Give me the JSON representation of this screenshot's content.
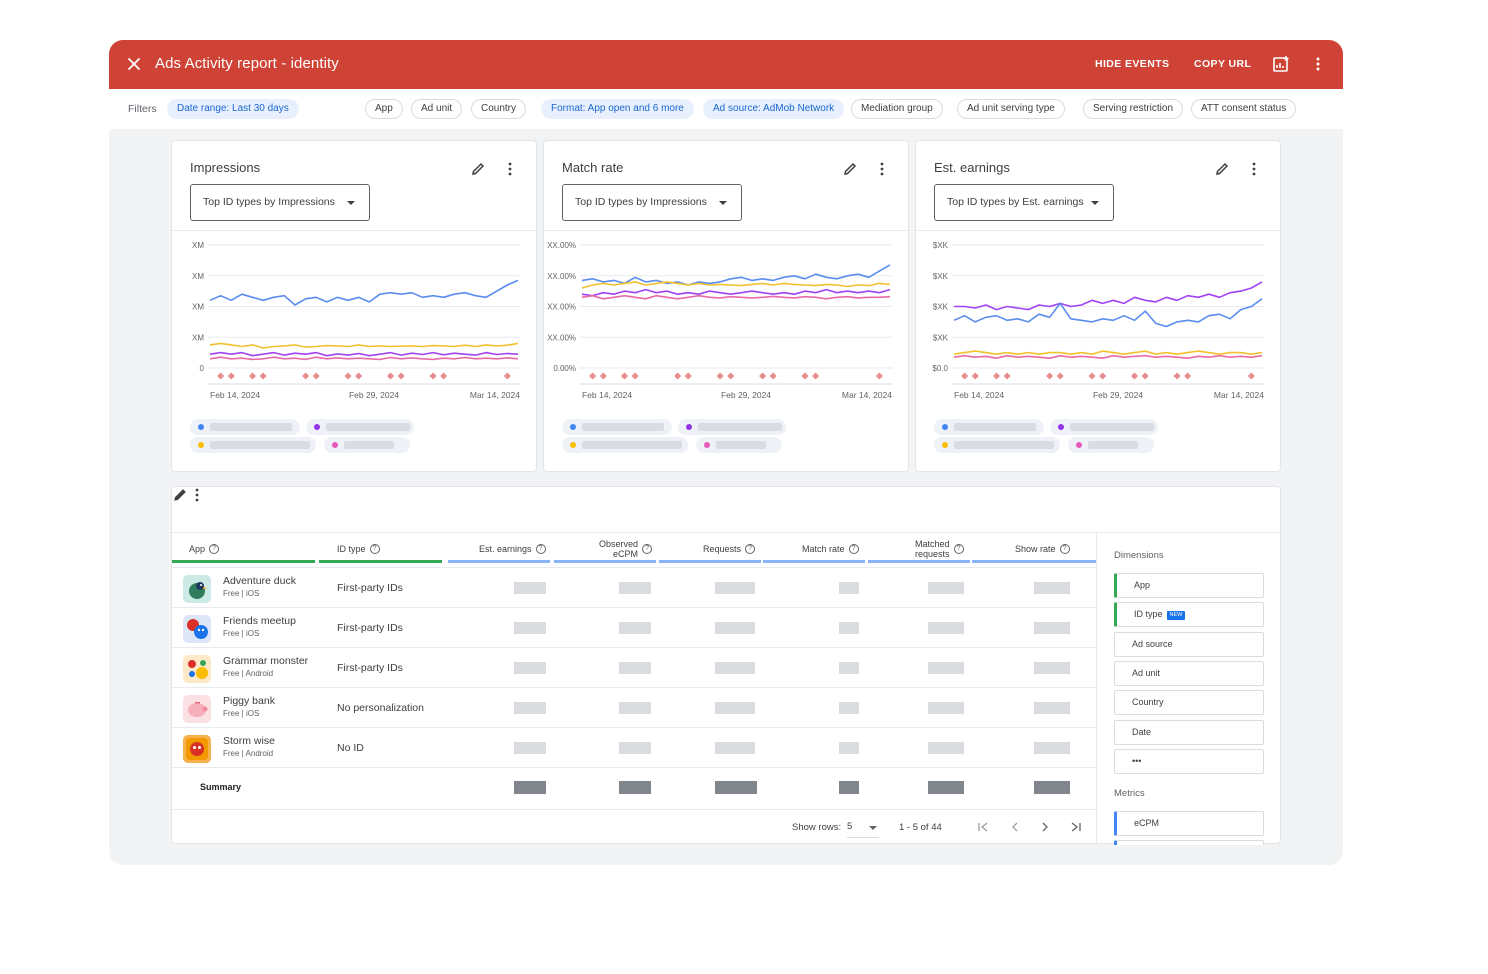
{
  "header": {
    "title": "Ads Activity report - identity",
    "hide_events": "HIDE EVENTS",
    "copy_url": "COPY URL"
  },
  "filters": {
    "label": "Filters",
    "chips": [
      {
        "label": "Date range: Last 30 days",
        "active": true
      },
      {
        "label": "App",
        "active": false
      },
      {
        "label": "Ad unit",
        "active": false
      },
      {
        "label": "Country",
        "active": false
      },
      {
        "label": "Format: App open and 6 more",
        "active": true
      },
      {
        "label": "Ad source: AdMob Network",
        "active": true
      },
      {
        "label": "Mediation group",
        "active": false
      },
      {
        "label": "Ad unit serving type",
        "active": false
      },
      {
        "label": "Serving restriction",
        "active": false
      },
      {
        "label": "ATT consent status",
        "active": false
      }
    ]
  },
  "cards": [
    {
      "title": "Impressions",
      "dropdown": "Top ID types by Impressions"
    },
    {
      "title": "Match rate",
      "dropdown": "Top ID types by Impressions"
    },
    {
      "title": "Est. earnings",
      "dropdown": "Top ID types by Est. earnings"
    }
  ],
  "chart_data": [
    {
      "type": "line",
      "title": "Impressions",
      "y_tick_labels": [
        "XM",
        "XM",
        "XM",
        "XM",
        "0"
      ],
      "x_tick_labels": [
        "Feb 14, 2024",
        "Feb 29, 2024",
        "Mar 14, 2024"
      ],
      "grid": true,
      "series": [
        {
          "color": "#5b8def",
          "values": [
            2.2,
            2.35,
            2.2,
            2.4,
            2.3,
            2.2,
            2.3,
            2.35,
            2.05,
            2.25,
            2.3,
            2.15,
            2.3,
            2.2,
            2.3,
            2.15,
            2.4,
            2.45,
            2.4,
            2.45,
            2.3,
            2.35,
            2.3,
            2.4,
            2.45,
            2.35,
            2.3,
            2.5,
            2.7,
            2.85
          ]
        },
        {
          "color": "#f2c12e",
          "values": [
            0.75,
            0.8,
            0.75,
            0.7,
            0.75,
            0.65,
            0.7,
            0.72,
            0.75,
            0.68,
            0.7,
            0.73,
            0.72,
            0.7,
            0.75,
            0.7,
            0.72,
            0.7,
            0.71,
            0.72,
            0.7,
            0.73,
            0.72,
            0.7,
            0.74,
            0.7,
            0.75,
            0.72,
            0.74,
            0.8
          ]
        },
        {
          "color": "#a142f4",
          "values": [
            0.45,
            0.5,
            0.45,
            0.5,
            0.4,
            0.45,
            0.5,
            0.42,
            0.48,
            0.45,
            0.5,
            0.4,
            0.46,
            0.42,
            0.47,
            0.4,
            0.45,
            0.5,
            0.42,
            0.48,
            0.44,
            0.5,
            0.43,
            0.48,
            0.45,
            0.42,
            0.5,
            0.44,
            0.47,
            0.45
          ]
        },
        {
          "color": "#e86ba6",
          "values": [
            0.3,
            0.35,
            0.3,
            0.32,
            0.28,
            0.3,
            0.35,
            0.3,
            0.32,
            0.28,
            0.35,
            0.3,
            0.33,
            0.3,
            0.32,
            0.3,
            0.28,
            0.34,
            0.3,
            0.33,
            0.3,
            0.28,
            0.32,
            0.3,
            0.34,
            0.3,
            0.32,
            0.3,
            0.33,
            0.3
          ]
        }
      ],
      "events": [
        1,
        2,
        4,
        5,
        9,
        10,
        13,
        14,
        17,
        18,
        21,
        22,
        28
      ]
    },
    {
      "type": "line",
      "title": "Match rate",
      "y_tick_labels": [
        "XX.00%",
        "XX.00%",
        "XX.00%",
        "XX.00%",
        "0.00%"
      ],
      "x_tick_labels": [
        "Feb 14, 2024",
        "Feb 29, 2024",
        "Mar 14, 2024"
      ],
      "grid": true,
      "series": [
        {
          "color": "#5b8def",
          "values": [
            2.85,
            2.9,
            2.8,
            2.85,
            2.75,
            2.95,
            2.8,
            2.85,
            2.75,
            2.8,
            2.7,
            2.8,
            2.75,
            2.8,
            2.9,
            2.95,
            2.85,
            2.9,
            2.85,
            2.95,
            3.0,
            2.9,
            3.05,
            2.95,
            2.9,
            3.0,
            3.05,
            2.95,
            3.15,
            3.35
          ]
        },
        {
          "color": "#f2c12e",
          "values": [
            2.6,
            2.7,
            2.75,
            2.7,
            2.75,
            2.8,
            2.7,
            2.75,
            2.8,
            2.75,
            2.7,
            2.75,
            2.7,
            2.72,
            2.7,
            2.68,
            2.72,
            2.75,
            2.7,
            2.75,
            2.72,
            2.7,
            2.68,
            2.72,
            2.7,
            2.65,
            2.7,
            2.68,
            2.75,
            2.72
          ]
        },
        {
          "color": "#a142f4",
          "values": [
            2.4,
            2.35,
            2.45,
            2.4,
            2.5,
            2.45,
            2.55,
            2.45,
            2.5,
            2.4,
            2.45,
            2.4,
            2.5,
            2.45,
            2.4,
            2.45,
            2.5,
            2.45,
            2.4,
            2.45,
            2.4,
            2.5,
            2.45,
            2.55,
            2.45,
            2.5,
            2.45,
            2.5,
            2.45,
            2.55
          ]
        },
        {
          "color": "#e86ba6",
          "values": [
            2.3,
            2.35,
            2.25,
            2.3,
            2.35,
            2.3,
            2.25,
            2.35,
            2.3,
            2.25,
            2.3,
            2.35,
            2.3,
            2.28,
            2.32,
            2.3,
            2.28,
            2.3,
            2.33,
            2.3,
            2.28,
            2.32,
            2.3,
            2.25,
            2.3,
            2.32,
            2.28,
            2.3,
            2.3,
            2.32
          ]
        }
      ],
      "events": [
        1,
        2,
        4,
        5,
        9,
        10,
        13,
        14,
        17,
        18,
        21,
        22,
        28
      ]
    },
    {
      "type": "line",
      "title": "Est. earnings",
      "y_tick_labels": [
        "$XK",
        "$XK",
        "$XK",
        "$XK",
        "$0.0"
      ],
      "x_tick_labels": [
        "Feb 14, 2024",
        "Feb 29, 2024",
        "Mar 14, 2024"
      ],
      "grid": true,
      "series": [
        {
          "color": "#a142f4",
          "values": [
            2.0,
            2.0,
            1.95,
            2.05,
            1.9,
            2.0,
            1.95,
            1.9,
            2.05,
            2.0,
            2.1,
            2.0,
            2.05,
            2.2,
            2.1,
            2.2,
            2.1,
            2.3,
            2.2,
            2.15,
            2.3,
            2.2,
            2.35,
            2.3,
            2.4,
            2.3,
            2.45,
            2.5,
            2.6,
            2.8
          ]
        },
        {
          "color": "#5b8def",
          "values": [
            1.55,
            1.7,
            1.5,
            1.65,
            1.7,
            1.55,
            1.6,
            1.5,
            1.75,
            1.65,
            2.1,
            1.6,
            1.55,
            1.5,
            1.6,
            1.55,
            1.7,
            1.55,
            1.85,
            1.45,
            1.35,
            1.5,
            1.55,
            1.5,
            1.7,
            1.75,
            1.6,
            1.9,
            2.0,
            2.25
          ]
        },
        {
          "color": "#f2c12e",
          "values": [
            0.45,
            0.5,
            0.55,
            0.5,
            0.45,
            0.5,
            0.45,
            0.5,
            0.45,
            0.5,
            0.5,
            0.45,
            0.5,
            0.45,
            0.55,
            0.5,
            0.45,
            0.5,
            0.55,
            0.45,
            0.5,
            0.45,
            0.5,
            0.55,
            0.5,
            0.45,
            0.5,
            0.5,
            0.45,
            0.5
          ]
        },
        {
          "color": "#e86ba6",
          "values": [
            0.35,
            0.4,
            0.35,
            0.38,
            0.32,
            0.4,
            0.35,
            0.38,
            0.35,
            0.32,
            0.4,
            0.35,
            0.38,
            0.35,
            0.32,
            0.4,
            0.35,
            0.38,
            0.4,
            0.35,
            0.38,
            0.35,
            0.32,
            0.38,
            0.35,
            0.4,
            0.35,
            0.38,
            0.35,
            0.4
          ]
        }
      ],
      "events": [
        1,
        2,
        4,
        5,
        9,
        10,
        13,
        14,
        17,
        18,
        21,
        22,
        28
      ]
    }
  ],
  "legend_colors": [
    "#4285f4",
    "#9334e6",
    "#fbbc04",
    "#e75ab8"
  ],
  "table": {
    "columns": [
      {
        "label": "App",
        "underline": "#34a853"
      },
      {
        "label": "ID type",
        "underline": "#34a853"
      },
      {
        "label": "Est. earnings",
        "underline": "#8ab4f8"
      },
      {
        "label1": "Observed",
        "label2": "eCPM",
        "underline": "#8ab4f8"
      },
      {
        "label": "Requests",
        "underline": "#8ab4f8"
      },
      {
        "label": "Match rate",
        "underline": "#8ab4f8"
      },
      {
        "label1": "Matched",
        "label2": "requests",
        "underline": "#8ab4f8"
      },
      {
        "label": "Show rate",
        "underline": "#8ab4f8"
      }
    ],
    "rows": [
      {
        "name": "Adventure duck",
        "sub": "Free | iOS",
        "id_type": "First-party IDs",
        "icon": "duck-app-icon",
        "icon_color": "#cde9e6"
      },
      {
        "name": "Friends meetup",
        "sub": "Free | iOS",
        "id_type": "First-party IDs",
        "icon": "friends-app-icon",
        "icon_color": "#dce6f6"
      },
      {
        "name": "Grammar monster",
        "sub": "Free | Android",
        "id_type": "First-party IDs",
        "icon": "monster-app-icon",
        "icon_color": "#fde9c8"
      },
      {
        "name": "Piggy bank",
        "sub": "Free | iOS",
        "id_type": "No personalization",
        "icon": "piggy-app-icon",
        "icon_color": "#fbe1e4"
      },
      {
        "name": "Storm wise",
        "sub": "Free | Android",
        "id_type": "No ID",
        "icon": "storm-app-icon",
        "icon_color": "#f6b04c"
      }
    ],
    "summary_label": "Summary",
    "pager": {
      "show_rows_label": "Show rows:",
      "rows_value": "5",
      "range": "1 - 5 of 44"
    }
  },
  "side_panel": {
    "dimensions_label": "Dimensions",
    "dimensions": [
      "App",
      "ID type",
      "Ad source",
      "Ad unit",
      "Country",
      "Date",
      "•••"
    ],
    "new_badge": "NEW",
    "metrics_label": "Metrics",
    "metrics": [
      "eCPM"
    ]
  }
}
